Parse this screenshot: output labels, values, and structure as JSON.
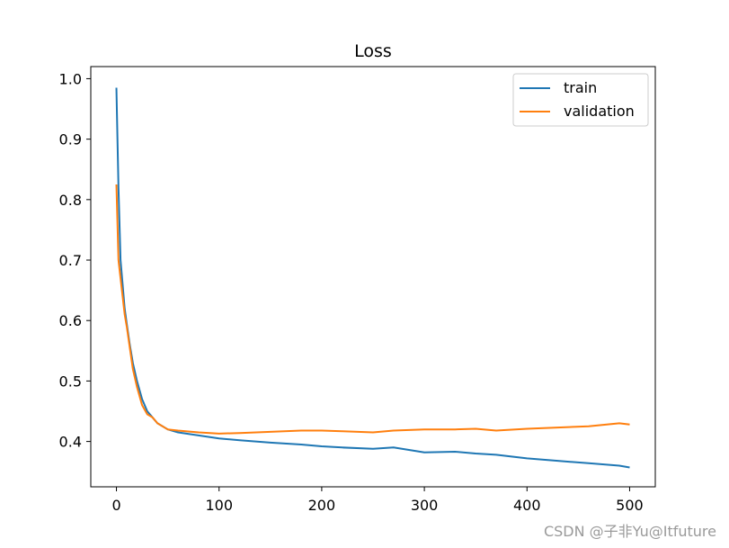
{
  "chart_data": {
    "type": "line",
    "title": "Loss",
    "xlabel": "",
    "ylabel": "",
    "xlim": [
      -25,
      525
    ],
    "ylim": [
      0.325,
      1.02
    ],
    "x_ticks": [
      0,
      100,
      200,
      300,
      400,
      500
    ],
    "y_ticks": [
      0.4,
      0.5,
      0.6,
      0.7,
      0.8,
      0.9,
      1.0
    ],
    "x_tick_labels": [
      "0",
      "100",
      "200",
      "300",
      "400",
      "500"
    ],
    "y_tick_labels": [
      "0.4",
      "0.5",
      "0.6",
      "0.7",
      "0.8",
      "0.9",
      "1.0"
    ],
    "grid": false,
    "legend_position": "top-right",
    "series": [
      {
        "name": "train",
        "color": "#1f77b4",
        "x": [
          0,
          2,
          4,
          6,
          8,
          10,
          13,
          16,
          20,
          25,
          30,
          35,
          40,
          50,
          60,
          80,
          100,
          120,
          150,
          180,
          200,
          220,
          250,
          270,
          300,
          330,
          350,
          370,
          400,
          430,
          460,
          490,
          500
        ],
        "y": [
          0.985,
          0.82,
          0.7,
          0.66,
          0.62,
          0.595,
          0.56,
          0.53,
          0.5,
          0.47,
          0.45,
          0.44,
          0.43,
          0.42,
          0.415,
          0.41,
          0.405,
          0.402,
          0.398,
          0.395,
          0.392,
          0.39,
          0.388,
          0.39,
          0.382,
          0.383,
          0.38,
          0.378,
          0.372,
          0.368,
          0.364,
          0.36,
          0.357
        ]
      },
      {
        "name": "validation",
        "color": "#ff7f0e",
        "x": [
          0,
          2,
          4,
          6,
          8,
          10,
          13,
          16,
          20,
          25,
          30,
          35,
          40,
          50,
          60,
          80,
          100,
          120,
          150,
          180,
          200,
          220,
          250,
          270,
          300,
          330,
          350,
          370,
          400,
          430,
          460,
          490,
          500
        ],
        "y": [
          0.825,
          0.7,
          0.67,
          0.64,
          0.61,
          0.59,
          0.555,
          0.52,
          0.49,
          0.46,
          0.445,
          0.44,
          0.43,
          0.42,
          0.418,
          0.415,
          0.413,
          0.414,
          0.416,
          0.418,
          0.418,
          0.417,
          0.415,
          0.418,
          0.42,
          0.42,
          0.421,
          0.418,
          0.421,
          0.423,
          0.425,
          0.43,
          0.428
        ]
      }
    ]
  },
  "watermark": "CSDN @子非Yu@Itfuture"
}
